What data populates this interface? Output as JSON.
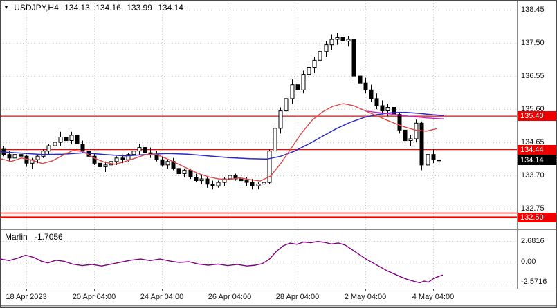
{
  "header": {
    "marker": "▼"
  },
  "colors": {
    "bull": "#ffffff",
    "bear": "#000000",
    "wick": "#000000",
    "ma_blue": "#2929c8",
    "ma_red": "#e04848",
    "ma_magenta": "#cc22cc",
    "indicator_line": "#800080",
    "level_line": "#ff0000",
    "badge_red": "#ee0000",
    "badge_black": "#000000",
    "grid": "#c9c9c9",
    "frame": "#8a8a8a"
  },
  "chart_data": {
    "type": "candlestick",
    "symbol_display": "USDJPY,H4",
    "ohlc_display": {
      "open": "134.13",
      "high": "134.16",
      "low": "133.99",
      "close": "134.14"
    },
    "price_axis": {
      "ticks": [
        138.45,
        137.5,
        136.55,
        135.6,
        134.65,
        133.7,
        132.75
      ],
      "badges": [
        {
          "value": "135.40",
          "price": 135.4,
          "type": "red"
        },
        {
          "value": "134.44",
          "price": 134.44,
          "type": "red"
        },
        {
          "value": "134.14",
          "price": 134.14,
          "type": "black"
        },
        {
          "value": "132.50",
          "price": 132.5,
          "type": "red"
        }
      ]
    },
    "time_axis": {
      "labels": [
        "18 Apr 2023",
        "20 Apr 04:00",
        "24 Apr 04:00",
        "26 Apr 04:00",
        "28 Apr 04:00",
        "2 May 04:00",
        "4 May 04:00"
      ]
    },
    "level_lines": [
      {
        "price": 135.4,
        "color": "#ff0000",
        "width": 1.2
      },
      {
        "price": 134.44,
        "color": "#ff0000",
        "width": 1.2
      },
      {
        "price": 132.62,
        "color": "#ff0000",
        "width": 1.5
      },
      {
        "price": 132.5,
        "color": "#ff0000",
        "width": 2.5
      }
    ],
    "candles": [
      [
        134.45,
        134.55,
        134.25,
        134.3
      ],
      [
        134.3,
        134.4,
        134.1,
        134.2
      ],
      [
        134.2,
        134.35,
        134.05,
        134.3
      ],
      [
        134.3,
        134.4,
        134.15,
        134.25
      ],
      [
        134.25,
        134.3,
        133.95,
        134.05
      ],
      [
        134.05,
        134.2,
        133.9,
        134.15
      ],
      [
        134.15,
        134.3,
        134.05,
        134.25
      ],
      [
        134.25,
        134.45,
        134.2,
        134.4
      ],
      [
        134.4,
        134.6,
        134.3,
        134.55
      ],
      [
        134.55,
        134.75,
        134.45,
        134.65
      ],
      [
        134.65,
        134.95,
        134.55,
        134.8
      ],
      [
        134.8,
        134.9,
        134.6,
        134.7
      ],
      [
        134.7,
        134.95,
        134.6,
        134.85
      ],
      [
        134.85,
        134.9,
        134.55,
        134.6
      ],
      [
        134.6,
        134.7,
        134.35,
        134.4
      ],
      [
        134.4,
        134.5,
        134.2,
        134.25
      ],
      [
        134.25,
        134.35,
        134.0,
        134.05
      ],
      [
        134.05,
        134.15,
        133.85,
        133.95
      ],
      [
        133.95,
        134.1,
        133.8,
        134.0
      ],
      [
        134.0,
        134.15,
        133.9,
        134.1
      ],
      [
        134.1,
        134.25,
        134.0,
        134.2
      ],
      [
        134.2,
        134.3,
        134.05,
        134.15
      ],
      [
        134.15,
        134.35,
        134.1,
        134.3
      ],
      [
        134.3,
        134.45,
        134.2,
        134.4
      ],
      [
        134.4,
        134.6,
        134.3,
        134.5
      ],
      [
        134.5,
        134.55,
        134.25,
        134.35
      ],
      [
        134.35,
        134.5,
        134.2,
        134.3
      ],
      [
        134.3,
        134.4,
        134.1,
        134.15
      ],
      [
        134.15,
        134.25,
        133.95,
        134.0
      ],
      [
        134.0,
        134.15,
        133.9,
        134.1
      ],
      [
        134.1,
        134.2,
        133.85,
        133.9
      ],
      [
        133.9,
        134.0,
        133.7,
        133.75
      ],
      [
        133.75,
        133.9,
        133.65,
        133.85
      ],
      [
        133.85,
        133.9,
        133.6,
        133.65
      ],
      [
        133.65,
        133.75,
        133.5,
        133.55
      ],
      [
        133.55,
        133.7,
        133.45,
        133.6
      ],
      [
        133.6,
        133.65,
        133.35,
        133.45
      ],
      [
        133.45,
        133.55,
        133.3,
        133.4
      ],
      [
        133.4,
        133.55,
        133.35,
        133.5
      ],
      [
        133.5,
        133.65,
        133.4,
        133.6
      ],
      [
        133.6,
        133.75,
        133.5,
        133.7
      ],
      [
        133.7,
        133.75,
        133.55,
        133.6
      ],
      [
        133.6,
        133.7,
        133.45,
        133.55
      ],
      [
        133.55,
        133.65,
        133.4,
        133.5
      ],
      [
        133.5,
        133.6,
        133.3,
        133.4
      ],
      [
        133.4,
        133.5,
        133.3,
        133.45
      ],
      [
        133.45,
        133.55,
        133.35,
        133.5
      ],
      [
        133.5,
        134.45,
        133.45,
        134.4
      ],
      [
        134.4,
        135.15,
        134.3,
        135.05
      ],
      [
        135.05,
        135.65,
        134.9,
        135.55
      ],
      [
        135.55,
        136.0,
        135.35,
        135.9
      ],
      [
        135.9,
        136.45,
        135.75,
        136.3
      ],
      [
        136.3,
        136.5,
        136.0,
        136.15
      ],
      [
        136.15,
        136.7,
        136.05,
        136.6
      ],
      [
        136.6,
        136.9,
        136.45,
        136.8
      ],
      [
        136.8,
        137.1,
        136.65,
        137.0
      ],
      [
        137.0,
        137.35,
        136.85,
        137.25
      ],
      [
        137.25,
        137.55,
        137.1,
        137.45
      ],
      [
        137.45,
        137.75,
        137.3,
        137.6
      ],
      [
        137.6,
        137.78,
        137.45,
        137.65
      ],
      [
        137.65,
        137.75,
        137.5,
        137.55
      ],
      [
        137.55,
        137.7,
        137.4,
        137.6
      ],
      [
        137.6,
        137.65,
        136.45,
        136.55
      ],
      [
        136.55,
        136.75,
        136.2,
        136.35
      ],
      [
        136.35,
        136.5,
        136.05,
        136.15
      ],
      [
        136.15,
        136.3,
        135.8,
        135.9
      ],
      [
        135.9,
        136.05,
        135.6,
        135.7
      ],
      [
        135.7,
        135.85,
        135.45,
        135.55
      ],
      [
        135.55,
        135.75,
        135.4,
        135.65
      ],
      [
        135.65,
        135.7,
        135.35,
        135.45
      ],
      [
        135.45,
        135.5,
        134.9,
        135.0
      ],
      [
        135.0,
        135.1,
        134.6,
        134.7
      ],
      [
        134.7,
        134.85,
        134.55,
        134.75
      ],
      [
        134.75,
        135.3,
        134.65,
        135.2
      ],
      [
        135.2,
        135.25,
        133.85,
        134.0
      ],
      [
        134.0,
        134.4,
        133.6,
        134.3
      ],
      [
        134.3,
        134.45,
        134.05,
        134.15
      ],
      [
        134.13,
        134.16,
        133.99,
        134.14
      ]
    ],
    "ma_blue": {
      "name": "slow moving average",
      "points": [
        [
          0,
          134.38
        ],
        [
          30,
          134.34
        ],
        [
          60,
          134.3
        ],
        [
          90,
          134.31
        ],
        [
          120,
          134.35
        ],
        [
          150,
          134.3
        ],
        [
          180,
          134.26
        ],
        [
          210,
          134.3
        ],
        [
          240,
          134.33
        ],
        [
          270,
          134.31
        ],
        [
          300,
          134.26
        ],
        [
          330,
          134.21
        ],
        [
          360,
          134.18
        ],
        [
          385,
          134.17
        ],
        [
          405,
          134.25
        ],
        [
          425,
          134.4
        ],
        [
          445,
          134.6
        ],
        [
          465,
          134.82
        ],
        [
          485,
          135.04
        ],
        [
          505,
          135.22
        ],
        [
          525,
          135.36
        ],
        [
          545,
          135.45
        ],
        [
          565,
          135.5
        ],
        [
          585,
          135.51
        ],
        [
          605,
          135.48
        ],
        [
          625,
          135.44
        ],
        [
          640,
          135.42
        ]
      ]
    },
    "ma_red": {
      "name": "fast moving average",
      "points": [
        [
          0,
          134.18
        ],
        [
          15,
          134.1
        ],
        [
          30,
          134.2
        ],
        [
          45,
          134.14
        ],
        [
          60,
          134.04
        ],
        [
          75,
          134.12
        ],
        [
          90,
          134.28
        ],
        [
          105,
          134.42
        ],
        [
          120,
          134.38
        ],
        [
          135,
          134.2
        ],
        [
          150,
          134.08
        ],
        [
          165,
          134.02
        ],
        [
          180,
          134.1
        ],
        [
          195,
          134.2
        ],
        [
          210,
          134.3
        ],
        [
          225,
          134.3
        ],
        [
          240,
          134.18
        ],
        [
          255,
          134.04
        ],
        [
          270,
          133.9
        ],
        [
          285,
          133.76
        ],
        [
          300,
          133.66
        ],
        [
          315,
          133.6
        ],
        [
          330,
          133.58
        ],
        [
          345,
          133.63
        ],
        [
          360,
          133.58
        ],
        [
          375,
          133.54
        ],
        [
          390,
          133.68
        ],
        [
          405,
          134.05
        ],
        [
          420,
          134.48
        ],
        [
          435,
          134.92
        ],
        [
          450,
          135.28
        ],
        [
          465,
          135.52
        ],
        [
          480,
          135.68
        ],
        [
          495,
          135.76
        ],
        [
          510,
          135.7
        ],
        [
          525,
          135.57
        ],
        [
          540,
          135.44
        ],
        [
          555,
          135.31
        ],
        [
          570,
          135.19
        ],
        [
          585,
          135.08
        ],
        [
          600,
          135.0
        ],
        [
          615,
          134.97
        ],
        [
          630,
          135.04
        ]
      ]
    },
    "ma_magenta": {
      "name": "magenta trend line",
      "points": [
        [
          530,
          135.54
        ],
        [
          560,
          135.47
        ],
        [
          590,
          135.4
        ],
        [
          615,
          135.35
        ],
        [
          640,
          135.32
        ]
      ]
    },
    "indicator": {
      "name": "Marlin",
      "value_display": "-1.7056",
      "ticks": [
        2.6816,
        0,
        -2.5716
      ],
      "tick_labels": [
        "2.6816",
        "0.00",
        "-2.5716"
      ],
      "points": [
        [
          0,
          0.35
        ],
        [
          12,
          0.15
        ],
        [
          24,
          0.45
        ],
        [
          36,
          0.85
        ],
        [
          48,
          0.55
        ],
        [
          58,
          0.1
        ],
        [
          68,
          -0.15
        ],
        [
          80,
          0.2
        ],
        [
          92,
          0.05
        ],
        [
          104,
          -0.3
        ],
        [
          118,
          -0.5
        ],
        [
          132,
          -0.35
        ],
        [
          146,
          -0.55
        ],
        [
          160,
          -0.3
        ],
        [
          174,
          -0.05
        ],
        [
          188,
          0.2
        ],
        [
          202,
          0.35
        ],
        [
          216,
          0.15
        ],
        [
          230,
          0.35
        ],
        [
          244,
          0.1
        ],
        [
          258,
          -0.1
        ],
        [
          272,
          0.0
        ],
        [
          286,
          -0.3
        ],
        [
          300,
          -0.45
        ],
        [
          314,
          -0.3
        ],
        [
          328,
          -0.5
        ],
        [
          342,
          -0.35
        ],
        [
          356,
          -0.55
        ],
        [
          368,
          -0.45
        ],
        [
          378,
          -0.25
        ],
        [
          388,
          0.3
        ],
        [
          398,
          1.3
        ],
        [
          408,
          2.05
        ],
        [
          418,
          2.4
        ],
        [
          428,
          2.25
        ],
        [
          438,
          2.55
        ],
        [
          448,
          2.45
        ],
        [
          458,
          2.62
        ],
        [
          468,
          2.5
        ],
        [
          478,
          2.3
        ],
        [
          488,
          2.42
        ],
        [
          498,
          2.15
        ],
        [
          508,
          1.55
        ],
        [
          518,
          0.95
        ],
        [
          528,
          0.35
        ],
        [
          538,
          -0.15
        ],
        [
          548,
          -0.65
        ],
        [
          558,
          -1.15
        ],
        [
          568,
          -1.55
        ],
        [
          578,
          -1.95
        ],
        [
          588,
          -2.3
        ],
        [
          598,
          -2.55
        ],
        [
          606,
          -2.72
        ],
        [
          612,
          -2.5
        ],
        [
          618,
          -2.65
        ],
        [
          626,
          -2.15
        ],
        [
          633,
          -1.9
        ],
        [
          639,
          -1.71
        ]
      ]
    }
  }
}
